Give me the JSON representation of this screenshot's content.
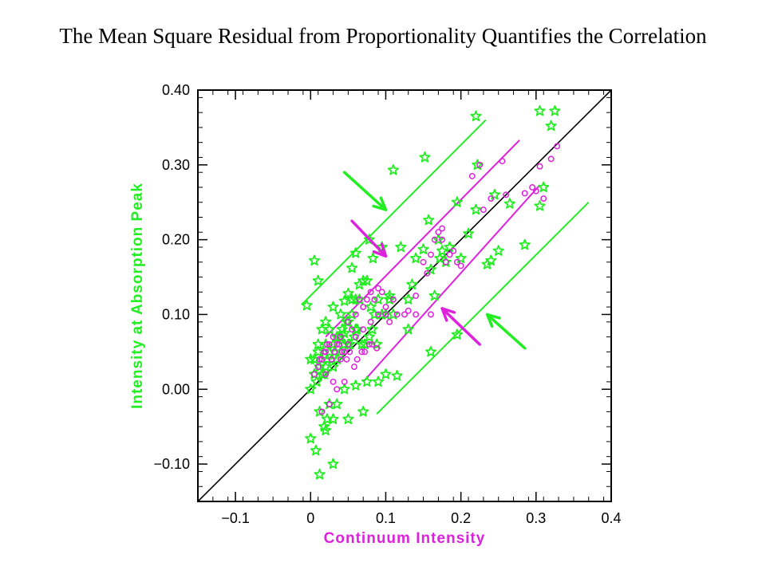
{
  "slide": {
    "title": "The Mean Square Residual from Proportionality Quantifies the Correlation"
  },
  "colors": {
    "green": "#22ee22",
    "magenta": "#dd22dd",
    "axis": "#000000"
  },
  "chart_data": {
    "type": "scatter",
    "xlabel": "Continuum Intensity",
    "ylabel": "Intensity at Absorption Peak",
    "xlim": [
      -0.15,
      0.4
    ],
    "ylim": [
      -0.15,
      0.4
    ],
    "xticks": [
      -0.1,
      0,
      0.1,
      0.2,
      0.3,
      0.4
    ],
    "xtick_labels": [
      "−0.1",
      "0",
      "0.1",
      "0.2",
      "0.3",
      "0.4"
    ],
    "yticks": [
      -0.1,
      0,
      0.1,
      0.2,
      0.3,
      0.4
    ],
    "ytick_labels": [
      "−0.10",
      "0.00",
      "0.10",
      "0.20",
      "0.30",
      "0.40"
    ],
    "grid": false,
    "series": [
      {
        "marker": "star",
        "color": "#22ee22",
        "x": [
          0.22,
          0.305,
          0.325,
          0.32,
          0.11,
          0.152,
          0.222,
          0.31,
          0.245,
          0.22,
          0.265,
          0.305,
          0.195,
          0.157,
          0.17,
          0.21,
          0.185,
          0.175,
          0.172,
          0.2,
          0.16,
          0.14,
          0.15,
          0.135,
          0.13,
          0.11,
          0.105,
          0.09,
          0.08,
          0.075,
          0.07,
          0.065,
          0.06,
          0.06,
          0.055,
          0.05,
          0.05,
          0.045,
          0.045,
          0.04,
          0.04,
          0.035,
          0.035,
          0.03,
          0.03,
          0.025,
          0.025,
          0.02,
          0.02,
          0.015,
          0.015,
          0.01,
          0.01,
          0.005,
          0.005,
          0.0,
          0.008,
          0.012,
          0.018,
          0.022,
          0.028,
          0.032,
          0.038,
          0.042,
          0.048,
          0.052,
          0.058,
          0.062,
          0.068,
          0.072,
          0.078,
          0.082,
          0.088,
          0.095,
          0.1,
          0.105,
          0.065,
          0.055,
          0.04,
          0.03,
          0.02,
          0.015,
          0.01,
          0.005,
          0.0,
          0.025,
          0.035,
          0.045,
          0.06,
          0.075,
          0.09,
          0.1,
          0.012,
          0.018,
          0.022,
          0.03,
          0.05,
          0.07,
          0.285,
          0.25,
          0.24,
          0.195,
          0.235,
          0.16,
          0.115,
          0.13,
          0.085,
          0.12,
          0.165,
          0.18,
          0.078,
          0.083,
          0.095,
          0.055,
          0.06,
          0.045,
          0.05,
          0.01,
          0.005,
          -0.005,
          0.0,
          0.02,
          0.03,
          0.007,
          0.012
        ],
        "y": [
          0.365,
          0.372,
          0.372,
          0.352,
          0.293,
          0.31,
          0.3,
          0.27,
          0.26,
          0.24,
          0.248,
          0.245,
          0.25,
          0.226,
          0.2,
          0.208,
          0.19,
          0.185,
          0.175,
          0.175,
          0.16,
          0.175,
          0.187,
          0.14,
          0.12,
          0.1,
          0.12,
          0.12,
          0.11,
          0.145,
          0.145,
          0.14,
          0.12,
          0.08,
          0.1,
          0.09,
          0.06,
          0.06,
          0.075,
          0.07,
          0.05,
          0.04,
          0.07,
          0.03,
          0.06,
          0.08,
          0.05,
          0.03,
          0.06,
          0.04,
          0.02,
          0.05,
          0.06,
          0.04,
          0.02,
          0.04,
          0.01,
          0.03,
          0.02,
          0.04,
          0.04,
          0.05,
          0.07,
          0.08,
          0.09,
          0.06,
          0.07,
          0.08,
          0.06,
          0.06,
          0.07,
          0.08,
          0.06,
          0.1,
          0.1,
          0.125,
          0.12,
          0.12,
          0.1,
          0.11,
          0.09,
          0.08,
          0.05,
          0.02,
          0.0,
          -0.02,
          -0.02,
          0.0,
          0.005,
          0.01,
          0.01,
          0.02,
          -0.03,
          -0.05,
          -0.04,
          -0.04,
          -0.04,
          -0.03,
          0.193,
          0.185,
          0.172,
          0.073,
          0.167,
          0.05,
          0.018,
          0.08,
          0.1,
          0.19,
          0.125,
          0.17,
          0.2,
          0.175,
          0.19,
          0.162,
          0.182,
          0.118,
          0.128,
          0.145,
          0.172,
          0.112,
          -0.066,
          -0.055,
          -0.1,
          -0.082,
          -0.114
        ]
      },
      {
        "marker": "circle",
        "color": "#dd22dd",
        "x": [
          0.328,
          0.32,
          0.305,
          0.295,
          0.285,
          0.26,
          0.24,
          0.23,
          0.225,
          0.215,
          0.2,
          0.195,
          0.19,
          0.185,
          0.18,
          0.175,
          0.17,
          0.165,
          0.16,
          0.16,
          0.155,
          0.15,
          0.14,
          0.13,
          0.125,
          0.115,
          0.105,
          0.1,
          0.095,
          0.09,
          0.085,
          0.08,
          0.075,
          0.07,
          0.065,
          0.06,
          0.055,
          0.05,
          0.045,
          0.04,
          0.035,
          0.03,
          0.025,
          0.02,
          0.015,
          0.01,
          0.005,
          0.012,
          0.018,
          0.022,
          0.028,
          0.032,
          0.038,
          0.042,
          0.048,
          0.052,
          0.058,
          0.062,
          0.068,
          0.072,
          0.078,
          0.082,
          0.088,
          0.015,
          0.025,
          0.035,
          0.045,
          0.02,
          0.03,
          0.01,
          0.04,
          0.05,
          0.06,
          0.07,
          0.08,
          0.09,
          0.1,
          0.11,
          0.14,
          0.175,
          0.3,
          0.31,
          0.255
        ],
        "y": [
          0.325,
          0.308,
          0.298,
          0.27,
          0.262,
          0.26,
          0.255,
          0.24,
          0.3,
          0.285,
          0.165,
          0.17,
          0.185,
          0.18,
          0.17,
          0.2,
          0.21,
          0.2,
          0.18,
          0.1,
          0.155,
          0.17,
          0.1,
          0.105,
          0.1,
          0.1,
          0.09,
          0.1,
          0.13,
          0.135,
          0.12,
          0.13,
          0.12,
          0.11,
          0.12,
          0.1,
          0.08,
          0.09,
          0.05,
          0.07,
          0.06,
          0.07,
          0.06,
          0.05,
          0.04,
          0.03,
          0.02,
          0.04,
          0.05,
          0.06,
          0.04,
          0.05,
          0.06,
          0.05,
          0.04,
          0.05,
          0.03,
          0.04,
          0.05,
          0.05,
          0.06,
          0.06,
          0.055,
          -0.03,
          -0.02,
          0.0,
          0.01,
          0.02,
          0.01,
          0.03,
          0.04,
          0.06,
          0.07,
          0.08,
          0.09,
          0.1,
          0.11,
          0.12,
          0.125,
          0.215,
          0.265,
          0.255,
          0.305
        ]
      }
    ],
    "lines": [
      {
        "name": "proportionality",
        "color": "#000000",
        "x": [
          -0.15,
          0.4
        ],
        "y": [
          -0.15,
          0.4
        ]
      },
      {
        "name": "inner-upper",
        "color": "#dd22dd",
        "x": [
          0.02,
          0.278
        ],
        "y": [
          0.07,
          0.333
        ]
      },
      {
        "name": "inner-lower",
        "color": "#dd22dd",
        "x": [
          0.07,
          0.305
        ],
        "y": [
          0.01,
          0.273
        ]
      },
      {
        "name": "outer-upper",
        "color": "#22ee22",
        "x": [
          -0.012,
          0.233
        ],
        "y": [
          0.113,
          0.36
        ]
      },
      {
        "name": "outer-lower",
        "color": "#22ee22",
        "x": [
          0.088,
          0.37
        ],
        "y": [
          -0.033,
          0.25
        ]
      }
    ],
    "arrows": [
      {
        "color": "#22ee22",
        "from": [
          0.045,
          0.29
        ],
        "to": [
          0.1,
          0.24
        ]
      },
      {
        "color": "#dd22dd",
        "from": [
          0.055,
          0.225
        ],
        "to": [
          0.1,
          0.178
        ]
      },
      {
        "color": "#dd22dd",
        "from": [
          0.225,
          0.06
        ],
        "to": [
          0.175,
          0.108
        ]
      },
      {
        "color": "#22ee22",
        "from": [
          0.285,
          0.055
        ],
        "to": [
          0.235,
          0.1
        ]
      }
    ]
  }
}
